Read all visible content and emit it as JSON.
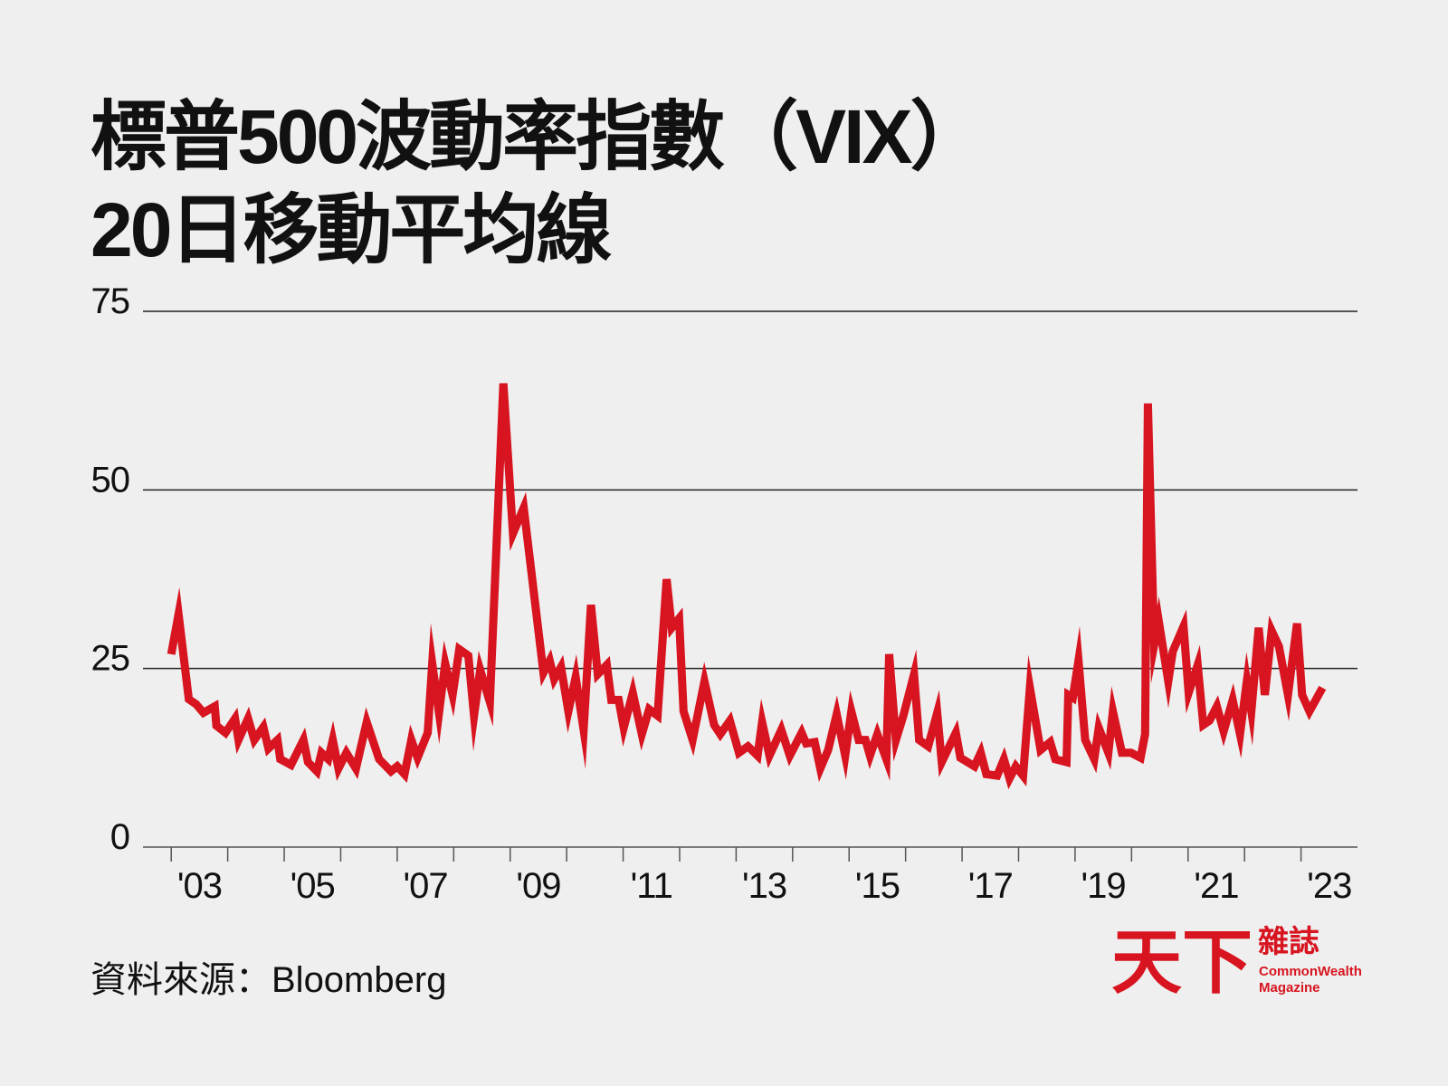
{
  "chart_data": {
    "type": "line",
    "title": [
      "標普500波動率指數（VIX）",
      "20日移動平均線"
    ],
    "source": "資料來源：Bloomberg",
    "logo": {
      "main": "天下",
      "side": "雜誌",
      "english": [
        "CommonWealth",
        "Magazine"
      ],
      "color": "#d7141f"
    },
    "xlim": [
      2002.5,
      2024
    ],
    "ylim": [
      0,
      75
    ],
    "yticks": [
      0,
      25,
      50,
      75
    ],
    "grid": true,
    "xticks": [
      {
        "value": 2003,
        "label": "'03"
      },
      {
        "value": 2005,
        "label": "'05"
      },
      {
        "value": 2007,
        "label": "'07"
      },
      {
        "value": 2009,
        "label": "'09"
      },
      {
        "value": 2011,
        "label": "'11"
      },
      {
        "value": 2013,
        "label": "'13"
      },
      {
        "value": 2015,
        "label": "'15"
      },
      {
        "value": 2017,
        "label": "'17"
      },
      {
        "value": 2019,
        "label": "'19"
      },
      {
        "value": 2021,
        "label": "'21"
      },
      {
        "value": 2023,
        "label": "'23"
      }
    ],
    "xminor_ticks": [
      2004,
      2006,
      2008,
      2010,
      2012,
      2014,
      2016,
      2018,
      2020,
      2022
    ],
    "series": [
      {
        "color": "#d7141f",
        "x": [
          2003.0,
          2003.13,
          2003.31,
          2003.44,
          2003.57,
          2003.77,
          2003.8,
          2003.96,
          2004.13,
          2004.19,
          2004.36,
          2004.47,
          2004.63,
          2004.72,
          2004.88,
          2004.93,
          2005.12,
          2005.34,
          2005.42,
          2005.58,
          2005.66,
          2005.78,
          2005.86,
          2005.96,
          2006.1,
          2006.27,
          2006.46,
          2006.68,
          2006.89,
          2007.0,
          2007.13,
          2007.25,
          2007.36,
          2007.54,
          2007.62,
          2007.74,
          2007.85,
          2007.98,
          2008.1,
          2008.26,
          2008.36,
          2008.47,
          2008.64,
          2008.88,
          2009.05,
          2009.24,
          2009.59,
          2009.7,
          2009.78,
          2009.9,
          2010.03,
          2010.16,
          2010.3,
          2010.43,
          2010.55,
          2010.71,
          2010.79,
          2010.92,
          2011.01,
          2011.17,
          2011.33,
          2011.46,
          2011.61,
          2011.77,
          2011.86,
          2011.99,
          2012.07,
          2012.23,
          2012.44,
          2012.61,
          2012.72,
          2012.89,
          2013.05,
          2013.21,
          2013.38,
          2013.46,
          2013.59,
          2013.8,
          2013.95,
          2014.16,
          2014.24,
          2014.39,
          2014.49,
          2014.63,
          2014.78,
          2014.93,
          2015.04,
          2015.17,
          2015.29,
          2015.37,
          2015.5,
          2015.66,
          2015.71,
          2015.83,
          2015.96,
          2016.15,
          2016.24,
          2016.4,
          2016.56,
          2016.64,
          2016.89,
          2016.97,
          2017.22,
          2017.33,
          2017.43,
          2017.62,
          2017.74,
          2017.84,
          2017.95,
          2018.08,
          2018.2,
          2018.39,
          2018.56,
          2018.65,
          2018.85,
          2018.88,
          2018.96,
          2019.06,
          2019.18,
          2019.34,
          2019.42,
          2019.59,
          2019.67,
          2019.83,
          2019.99,
          2020.16,
          2020.24,
          2020.29,
          2020.4,
          2020.48,
          2020.65,
          2020.73,
          2020.92,
          2021.01,
          2021.17,
          2021.27,
          2021.38,
          2021.51,
          2021.63,
          2021.79,
          2021.92,
          2022.04,
          2022.12,
          2022.25,
          2022.36,
          2022.48,
          2022.61,
          2022.77,
          2022.93,
          2023.02,
          2023.15,
          2023.38
        ],
        "values": [
          27,
          32.6,
          20.7,
          20,
          18.8,
          19.7,
          17,
          16,
          18,
          15,
          18,
          15,
          16.8,
          13.8,
          15,
          12.3,
          11.5,
          15,
          11.9,
          10.6,
          13.2,
          12.3,
          15,
          11,
          13.2,
          11,
          17.5,
          12.3,
          10.6,
          11.3,
          10.2,
          15,
          12.5,
          16,
          25.7,
          18.8,
          25.7,
          21.3,
          27.7,
          26.8,
          18.4,
          24.8,
          20.3,
          64.9,
          43.9,
          47.5,
          24.4,
          26.1,
          23.5,
          25.2,
          19,
          23.8,
          16.4,
          33.9,
          24.2,
          25.5,
          20.6,
          20.6,
          16.7,
          21.6,
          15.8,
          19.3,
          18.4,
          37.5,
          30.7,
          32,
          19,
          15,
          23.2,
          17.1,
          15.8,
          17.7,
          13.2,
          14.1,
          12.8,
          17.5,
          12.8,
          16.4,
          12.8,
          16,
          14.5,
          14.7,
          11,
          13.6,
          18.6,
          12.8,
          19,
          15,
          15,
          12.8,
          15.8,
          12.3,
          27,
          15,
          18.4,
          24.2,
          15,
          14.1,
          18.8,
          11.9,
          16,
          12.5,
          11.3,
          13.2,
          10.2,
          10,
          12.3,
          9.6,
          11.3,
          10,
          22.3,
          13.6,
          14.7,
          12.3,
          11.9,
          21.3,
          20.9,
          26.1,
          15,
          12.3,
          16.7,
          13.2,
          19,
          13.2,
          13.2,
          12.5,
          15.8,
          62.1,
          28.3,
          31.7,
          23.2,
          27.4,
          30.9,
          21.6,
          25.5,
          17.1,
          17.7,
          19.7,
          16.2,
          20.6,
          15.8,
          23.2,
          19,
          30.7,
          21.3,
          30.3,
          28.1,
          21.3,
          31.3,
          21.3,
          19,
          22.3
        ]
      }
    ]
  }
}
